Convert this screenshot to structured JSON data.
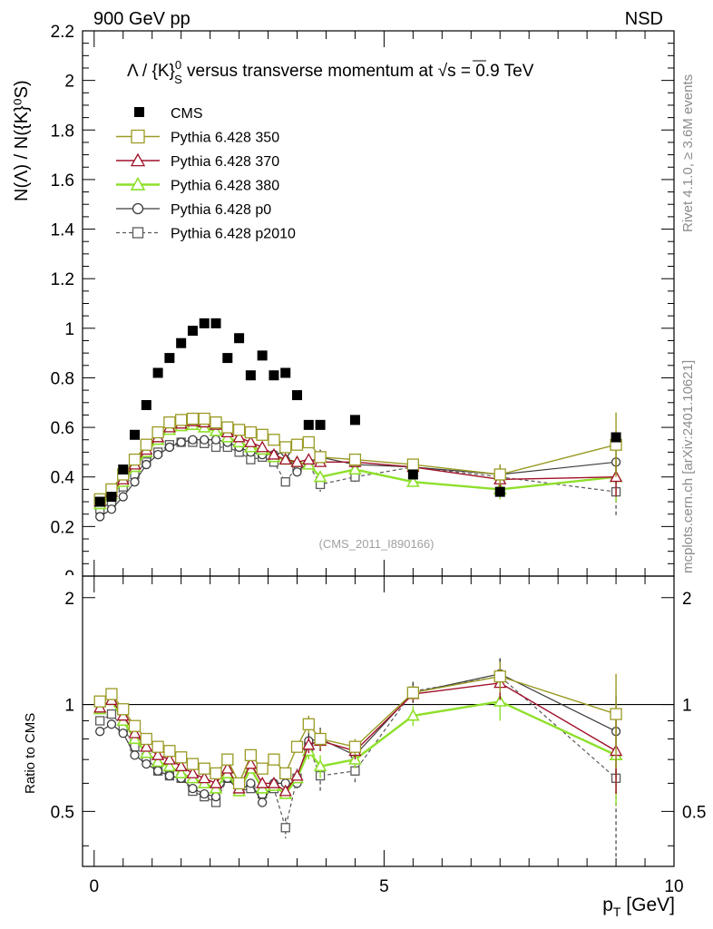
{
  "header": {
    "left": "900 GeV pp",
    "right": "NSD",
    "title_pre": "Λ / {K}",
    "title_sup": "0",
    "title_sub": "S",
    "title_post": " versus transverse momentum at ",
    "title_sqrt": "√s",
    "title_end": " = 0.9 TeV"
  },
  "side": {
    "rivet": "Rivet 4.1.0, ≥ 3.6M events",
    "mcplots": "mcplots.cern.ch [arXiv:2401.10621]"
  },
  "source_label": "(CMS_2011_I890166)",
  "colors": {
    "cms": "#000000",
    "p350": "#9a9a24",
    "p370": "#a0102a",
    "p380": "#8ee02a",
    "p0": "#3c3c3c",
    "p2010": "#5a5a5a"
  },
  "chart_data": [
    {
      "type": "scatter",
      "panel": "main",
      "ylabel": "N(Λ)  /  N({K}⁰S)",
      "xlim": [
        -0.2,
        10.0
      ],
      "ylim": [
        0,
        2.2
      ],
      "yticks": [
        0,
        0.2,
        0.4,
        0.6,
        0.8,
        1,
        1.2,
        1.4,
        1.6,
        1.8,
        2,
        2.2
      ],
      "ytick_labels": [
        "0",
        "0.2",
        "0.4",
        "0.6",
        "0.8",
        "1",
        "1.2",
        "1.4",
        "1.6",
        "1.8",
        "2",
        "2.2"
      ],
      "legend_position": "top-left",
      "series": [
        {
          "name": "CMS",
          "key": "cms",
          "x": [
            0.1,
            0.3,
            0.5,
            0.7,
            0.9,
            1.1,
            1.3,
            1.5,
            1.7,
            1.9,
            2.1,
            2.3,
            2.5,
            2.7,
            2.9,
            3.1,
            3.3,
            3.5,
            3.7,
            3.9,
            4.5,
            5.5,
            7.0,
            9.0
          ],
          "values": [
            0.3,
            0.32,
            0.43,
            0.57,
            0.69,
            0.82,
            0.88,
            0.94,
            0.99,
            1.02,
            1.02,
            0.88,
            0.96,
            0.81,
            0.89,
            0.81,
            0.82,
            0.73,
            0.61,
            0.61,
            0.63,
            0.41,
            0.34,
            0.56
          ]
        },
        {
          "name": "Pythia 6.428 350",
          "key": "p350",
          "x": [
            0.1,
            0.3,
            0.5,
            0.7,
            0.9,
            1.1,
            1.3,
            1.5,
            1.7,
            1.9,
            2.1,
            2.3,
            2.5,
            2.7,
            2.9,
            3.1,
            3.3,
            3.5,
            3.7,
            3.9,
            4.5,
            5.5,
            7.0,
            9.0
          ],
          "values": [
            0.31,
            0.35,
            0.41,
            0.47,
            0.53,
            0.58,
            0.62,
            0.63,
            0.635,
            0.635,
            0.62,
            0.6,
            0.59,
            0.58,
            0.57,
            0.55,
            0.52,
            0.53,
            0.54,
            0.48,
            0.47,
            0.45,
            0.41,
            0.53
          ],
          "err": [
            0,
            0,
            0,
            0,
            0,
            0,
            0,
            0,
            0,
            0,
            0,
            0,
            0,
            0,
            0,
            0,
            0,
            0,
            0,
            0,
            0.02,
            0.02,
            0.04,
            0.13
          ]
        },
        {
          "name": "Pythia 6.428 370",
          "key": "p370",
          "x": [
            0.1,
            0.3,
            0.5,
            0.7,
            0.9,
            1.1,
            1.3,
            1.5,
            1.7,
            1.9,
            2.1,
            2.3,
            2.5,
            2.7,
            2.9,
            3.1,
            3.3,
            3.5,
            3.7,
            3.9,
            4.5,
            5.5,
            7.0,
            9.0
          ],
          "values": [
            0.3,
            0.34,
            0.39,
            0.45,
            0.51,
            0.56,
            0.6,
            0.615,
            0.625,
            0.62,
            0.61,
            0.58,
            0.56,
            0.54,
            0.52,
            0.49,
            0.47,
            0.46,
            0.47,
            0.46,
            0.46,
            0.44,
            0.39,
            0.4
          ],
          "err": [
            0,
            0,
            0,
            0,
            0,
            0,
            0,
            0,
            0,
            0,
            0,
            0,
            0,
            0,
            0,
            0,
            0,
            0,
            0,
            0,
            0.02,
            0.02,
            0.04,
            0.08
          ]
        },
        {
          "name": "Pythia 6.428 380",
          "key": "p380",
          "x": [
            0.1,
            0.3,
            0.5,
            0.7,
            0.9,
            1.1,
            1.3,
            1.5,
            1.7,
            1.9,
            2.1,
            2.3,
            2.5,
            2.7,
            2.9,
            3.1,
            3.3,
            3.5,
            3.7,
            3.9,
            4.5,
            5.5,
            7.0,
            9.0
          ],
          "values": [
            0.29,
            0.33,
            0.38,
            0.44,
            0.5,
            0.55,
            0.59,
            0.605,
            0.61,
            0.6,
            0.585,
            0.56,
            0.54,
            0.52,
            0.51,
            0.48,
            0.47,
            0.46,
            0.45,
            0.4,
            0.43,
            0.38,
            0.35,
            0.4
          ],
          "err": [
            0,
            0,
            0,
            0,
            0,
            0,
            0,
            0,
            0,
            0,
            0,
            0,
            0,
            0,
            0,
            0,
            0,
            0,
            0,
            0,
            0.02,
            0.02,
            0.04,
            0.1
          ]
        },
        {
          "name": "Pythia 6.428 p0",
          "key": "p0",
          "x": [
            0.1,
            0.3,
            0.5,
            0.7,
            0.9,
            1.1,
            1.3,
            1.5,
            1.7,
            1.9,
            2.1,
            2.3,
            2.5,
            2.7,
            2.9,
            3.1,
            3.3,
            3.5,
            3.7,
            3.9,
            4.5,
            5.5,
            7.0,
            9.0
          ],
          "values": [
            0.24,
            0.27,
            0.32,
            0.38,
            0.45,
            0.49,
            0.52,
            0.54,
            0.55,
            0.55,
            0.55,
            0.54,
            0.52,
            0.5,
            0.49,
            0.49,
            0.5,
            0.42,
            0.46,
            0.48,
            0.45,
            0.44,
            0.41,
            0.46
          ],
          "err": [
            0,
            0,
            0,
            0,
            0,
            0,
            0,
            0,
            0,
            0,
            0,
            0,
            0,
            0,
            0,
            0,
            0,
            0,
            0,
            0.03,
            0.02,
            0.03,
            0.04,
            0.08
          ]
        },
        {
          "name": "Pythia 6.428 p2010",
          "key": "p2010",
          "x": [
            0.1,
            0.3,
            0.5,
            0.7,
            0.9,
            1.1,
            1.3,
            1.5,
            1.7,
            1.9,
            2.1,
            2.3,
            2.5,
            2.7,
            2.9,
            3.1,
            3.3,
            3.5,
            3.7,
            3.9,
            4.5,
            5.5,
            7.0,
            9.0
          ],
          "values": [
            0.27,
            0.3,
            0.36,
            0.41,
            0.46,
            0.5,
            0.53,
            0.54,
            0.54,
            0.535,
            0.52,
            0.52,
            0.5,
            0.47,
            0.48,
            0.46,
            0.38,
            0.44,
            0.45,
            0.37,
            0.4,
            0.44,
            0.4,
            0.34
          ],
          "err": [
            0,
            0,
            0,
            0,
            0,
            0,
            0,
            0,
            0,
            0,
            0,
            0,
            0,
            0,
            0,
            0,
            0,
            0,
            0,
            0.03,
            0.02,
            0.03,
            0.05,
            0.1
          ]
        }
      ]
    },
    {
      "type": "line",
      "panel": "ratio",
      "ylabel": "Ratio to CMS",
      "xlabel_main": "p",
      "xlabel_sub": "T",
      "xlabel_unit": " [GeV]",
      "xlim": [
        -0.2,
        10.0
      ],
      "ylim": [
        0.35,
        2.3
      ],
      "ylog": true,
      "yticks": [
        0.5,
        1,
        2
      ],
      "ytick_labels": [
        "0.5",
        "1",
        "2"
      ],
      "xticks": [
        0,
        5,
        10
      ],
      "xtick_labels": [
        "0",
        "5",
        "10"
      ],
      "reference_line": 1,
      "series": [
        {
          "key": "p350",
          "x": [
            0.1,
            0.3,
            0.5,
            0.7,
            0.9,
            1.1,
            1.3,
            1.5,
            1.7,
            1.9,
            2.1,
            2.3,
            2.5,
            2.7,
            2.9,
            3.1,
            3.3,
            3.5,
            3.7,
            3.9,
            4.5,
            5.5,
            7.0,
            9.0
          ],
          "values": [
            1.02,
            1.07,
            0.97,
            0.87,
            0.8,
            0.76,
            0.74,
            0.71,
            0.68,
            0.66,
            0.64,
            0.7,
            0.6,
            0.72,
            0.66,
            0.7,
            0.64,
            0.76,
            0.88,
            0.8,
            0.76,
            1.08,
            1.2,
            0.94
          ],
          "err": [
            0,
            0,
            0,
            0,
            0,
            0,
            0,
            0,
            0,
            0,
            0,
            0,
            0,
            0,
            0,
            0,
            0,
            0,
            0.05,
            0.05,
            0.04,
            0.05,
            0.12,
            0.28
          ]
        },
        {
          "key": "p370",
          "x": [
            0.1,
            0.3,
            0.5,
            0.7,
            0.9,
            1.1,
            1.3,
            1.5,
            1.7,
            1.9,
            2.1,
            2.3,
            2.5,
            2.7,
            2.9,
            3.1,
            3.3,
            3.5,
            3.7,
            3.9,
            4.5,
            5.5,
            7.0,
            9.0
          ],
          "values": [
            0.98,
            1.03,
            0.93,
            0.83,
            0.76,
            0.72,
            0.7,
            0.67,
            0.64,
            0.62,
            0.6,
            0.66,
            0.58,
            0.68,
            0.6,
            0.6,
            0.57,
            0.63,
            0.77,
            0.79,
            0.74,
            1.07,
            1.15,
            0.74
          ],
          "err": [
            0,
            0,
            0,
            0,
            0,
            0,
            0,
            0,
            0,
            0,
            0,
            0,
            0,
            0,
            0,
            0,
            0,
            0,
            0.04,
            0.05,
            0.04,
            0.05,
            0.12,
            0.18
          ]
        },
        {
          "key": "p380",
          "x": [
            0.1,
            0.3,
            0.5,
            0.7,
            0.9,
            1.1,
            1.3,
            1.5,
            1.7,
            1.9,
            2.1,
            2.3,
            2.5,
            2.7,
            2.9,
            3.1,
            3.3,
            3.5,
            3.7,
            3.9,
            4.5,
            5.5,
            7.0,
            9.0
          ],
          "values": [
            0.97,
            1.03,
            0.9,
            0.8,
            0.73,
            0.69,
            0.67,
            0.64,
            0.62,
            0.6,
            0.58,
            0.64,
            0.57,
            0.66,
            0.58,
            0.59,
            0.56,
            0.62,
            0.74,
            0.67,
            0.7,
            0.93,
            1.02,
            0.72
          ],
          "err": [
            0,
            0,
            0,
            0,
            0,
            0,
            0,
            0,
            0,
            0,
            0,
            0,
            0,
            0,
            0,
            0,
            0,
            0,
            0.04,
            0.05,
            0.04,
            0.06,
            0.12,
            0.2
          ]
        },
        {
          "key": "p0",
          "x": [
            0.1,
            0.3,
            0.5,
            0.7,
            0.9,
            1.1,
            1.3,
            1.5,
            1.7,
            1.9,
            2.1,
            2.3,
            2.5,
            2.7,
            2.9,
            3.1,
            3.3,
            3.5,
            3.7,
            3.9,
            4.5,
            5.5,
            7.0,
            9.0
          ],
          "values": [
            0.84,
            0.88,
            0.83,
            0.72,
            0.68,
            0.65,
            0.63,
            0.62,
            0.58,
            0.56,
            0.55,
            0.62,
            0.57,
            0.6,
            0.53,
            0.6,
            0.6,
            0.6,
            0.79,
            0.8,
            0.72,
            1.08,
            1.22,
            0.84
          ],
          "err": [
            0,
            0,
            0,
            0,
            0,
            0,
            0,
            0,
            0,
            0,
            0,
            0,
            0,
            0,
            0,
            0,
            0,
            0,
            0.05,
            0.06,
            0.05,
            0.07,
            0.13,
            0.22
          ]
        },
        {
          "key": "p2010",
          "x": [
            0.1,
            0.3,
            0.5,
            0.7,
            0.9,
            1.1,
            1.3,
            1.5,
            1.7,
            1.9,
            2.1,
            2.3,
            2.5,
            2.7,
            2.9,
            3.1,
            3.3,
            3.5,
            3.7,
            3.9,
            4.5,
            5.5,
            7.0,
            9.0
          ],
          "values": [
            0.9,
            0.94,
            0.86,
            0.76,
            0.71,
            0.65,
            0.63,
            0.62,
            0.57,
            0.55,
            0.53,
            0.62,
            0.57,
            0.58,
            0.56,
            0.58,
            0.45,
            0.62,
            0.76,
            0.63,
            0.65,
            1.09,
            1.2,
            0.62
          ],
          "err": [
            0,
            0,
            0,
            0,
            0,
            0,
            0,
            0,
            0,
            0,
            0,
            0,
            0,
            0,
            0,
            0,
            0.03,
            0.04,
            0.05,
            0.06,
            0.05,
            0.07,
            0.14,
            0.25
          ]
        }
      ]
    }
  ]
}
